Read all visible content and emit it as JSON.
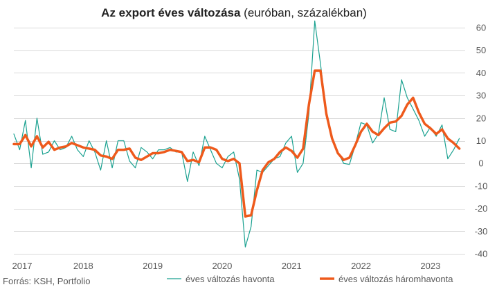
{
  "chart_data": {
    "type": "line",
    "title_bold": "Az export éves változása",
    "title_rest": " (euróban, százalékban)",
    "source": "Forrás: KSH, Portfolio",
    "ylim": [
      -40,
      60
    ],
    "yticks": [
      60,
      50,
      40,
      30,
      20,
      10,
      0,
      -10,
      -20,
      -30,
      -40
    ],
    "x_range": [
      2017,
      2023.5
    ],
    "xticks": [
      {
        "label": "2017",
        "year": 2017
      },
      {
        "label": "2018",
        "year": 2018
      },
      {
        "label": "2019",
        "year": 2019
      },
      {
        "label": "2020",
        "year": 2020
      },
      {
        "label": "2021",
        "year": 2021
      },
      {
        "label": "2022",
        "year": 2022
      },
      {
        "label": "2023",
        "year": 2023
      }
    ],
    "grid": true,
    "start": "2017-01",
    "series": [
      {
        "name": "éves változás havonta",
        "color": "#1aa190",
        "values": [
          13,
          6,
          19,
          -2,
          20,
          4,
          5,
          10,
          6,
          7,
          12,
          6,
          3,
          10,
          5,
          -3,
          10,
          -2,
          10,
          10,
          1,
          -2,
          7,
          5,
          2,
          6,
          6,
          7,
          5,
          5,
          -8,
          5,
          -1,
          12,
          6,
          0,
          -2,
          3,
          5,
          -7,
          -37,
          -28,
          -3,
          -4,
          -1,
          2,
          3,
          9,
          12,
          -4,
          0,
          22,
          63,
          44,
          23,
          11,
          5,
          0,
          -0.5,
          8,
          18,
          17,
          9,
          13,
          29,
          15,
          14,
          37,
          29,
          24,
          19,
          12,
          16,
          12,
          17,
          2,
          6,
          11
        ]
      },
      {
        "name": "éves változás háromhavonta",
        "color": "#ee5a1c",
        "values": [
          8.5,
          8.5,
          12.5,
          7.5,
          12,
          7,
          9.5,
          6,
          7,
          7.5,
          9,
          8,
          7,
          6.5,
          6,
          3.5,
          3,
          2,
          6,
          6,
          6.5,
          2.5,
          1.5,
          3,
          4.5,
          4.5,
          5,
          6,
          5.5,
          5,
          1,
          1.5,
          0.5,
          7,
          7,
          6,
          2,
          1,
          2,
          0,
          -23.5,
          -23,
          -12,
          -3,
          0.5,
          2,
          5,
          7,
          5.5,
          2.5,
          6.5,
          26,
          41,
          41,
          22,
          11,
          4.5,
          1.5,
          2.5,
          8,
          14,
          17.5,
          14,
          12.5,
          15.5,
          18,
          18.5,
          21,
          26,
          29,
          22.5,
          17.5,
          15.5,
          13,
          15,
          11,
          9,
          6.5
        ]
      }
    ]
  }
}
